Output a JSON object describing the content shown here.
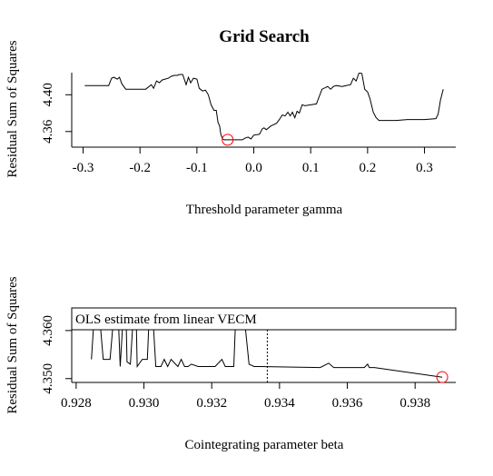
{
  "chart_data": [
    {
      "type": "line",
      "title": "Grid Search",
      "xlabel": "Threshold parameter gamma",
      "ylabel": "Residual Sum of Squares",
      "xlim": [
        -0.32,
        0.355
      ],
      "ylim": [
        4.343,
        4.424
      ],
      "xticks": [
        -0.3,
        -0.2,
        -0.1,
        0.0,
        0.1,
        0.2,
        0.3
      ],
      "xtick_labels": [
        "-0.3",
        "-0.2",
        "-0.1",
        "0.0",
        "0.1",
        "0.2",
        "0.3"
      ],
      "yticks": [
        4.36,
        4.4
      ],
      "ytick_labels": [
        "4.36",
        "4.40"
      ],
      "series": [
        {
          "color": "#000000",
          "x": [
            -0.297,
            -0.255,
            -0.25,
            -0.246,
            -0.24,
            -0.236,
            -0.232,
            -0.225,
            -0.19,
            -0.18,
            -0.176,
            -0.171,
            -0.166,
            -0.161,
            -0.156,
            -0.15,
            -0.145,
            -0.14,
            -0.135,
            -0.13,
            -0.125,
            -0.119,
            -0.115,
            -0.111,
            -0.106,
            -0.1,
            -0.096,
            -0.09,
            -0.085,
            -0.08,
            -0.075,
            -0.07,
            -0.066,
            -0.063,
            -0.06,
            -0.058,
            -0.055,
            -0.052,
            -0.049,
            -0.046,
            -0.02,
            -0.015,
            -0.01,
            -0.005,
            0.0,
            0.01,
            0.015,
            0.018,
            0.022,
            0.03,
            0.04,
            0.045,
            0.05,
            0.055,
            0.06,
            0.064,
            0.068,
            0.072,
            0.076,
            0.08,
            0.085,
            0.09,
            0.1,
            0.11,
            0.12,
            0.13,
            0.135,
            0.14,
            0.145,
            0.155,
            0.17,
            0.175,
            0.18,
            0.185,
            0.19,
            0.195,
            0.2,
            0.204,
            0.208,
            0.21,
            0.215,
            0.22,
            0.23,
            0.25,
            0.27,
            0.3,
            0.32,
            0.324,
            0.328,
            0.333
          ],
          "y": [
            4.41,
            4.41,
            4.418,
            4.419,
            4.417,
            4.419,
            4.412,
            4.406,
            4.406,
            4.411,
            4.407,
            4.415,
            4.413,
            4.416,
            4.417,
            4.418,
            4.42,
            4.421,
            4.421,
            4.422,
            4.422,
            4.411,
            4.419,
            4.413,
            4.418,
            4.417,
            4.407,
            4.404,
            4.405,
            4.4,
            4.389,
            4.383,
            4.383,
            4.37,
            4.366,
            4.357,
            4.352,
            4.351,
            4.351,
            4.351,
            4.351,
            4.353,
            4.354,
            4.352,
            4.356,
            4.357,
            4.363,
            4.364,
            4.362,
            4.366,
            4.369,
            4.373,
            4.378,
            4.377,
            4.381,
            4.377,
            4.381,
            4.375,
            4.382,
            4.38,
            4.389,
            4.388,
            4.389,
            4.39,
            4.406,
            4.409,
            4.406,
            4.409,
            4.41,
            4.409,
            4.411,
            4.418,
            4.415,
            4.424,
            4.423,
            4.406,
            4.403,
            4.396,
            4.386,
            4.381,
            4.375,
            4.372,
            4.372,
            4.372,
            4.373,
            4.373,
            4.374,
            4.379,
            4.394,
            4.406
          ]
        }
      ],
      "markers": [
        {
          "x": -0.046,
          "y": 4.351,
          "color": "#ff0000",
          "shape": "circle"
        }
      ]
    },
    {
      "type": "line",
      "xlabel": "Cointegrating parameter beta",
      "ylabel": "Residual Sum of Squares",
      "xlim": [
        0.92787,
        0.9392
      ],
      "ylim": [
        4.3492,
        4.3647
      ],
      "xticks": [
        0.928,
        0.93,
        0.932,
        0.934,
        0.936,
        0.938
      ],
      "xtick_labels": [
        "0.928",
        "0.930",
        "0.932",
        "0.934",
        "0.936",
        "0.938"
      ],
      "yticks": [
        4.35,
        4.36
      ],
      "ytick_labels": [
        "4.350",
        "4.360"
      ],
      "legend": {
        "text": "OLS estimate from linear VECM",
        "position": "top"
      },
      "vline": {
        "x": 0.93364,
        "style": "dotted",
        "color": "#000000"
      },
      "series": [
        {
          "color": "#000000",
          "x": [
            0.92845,
            0.9286,
            0.9288,
            0.929,
            0.9292,
            0.9293,
            0.92945,
            0.9295,
            0.9296,
            0.92975,
            0.9298,
            0.92995,
            0.9301,
            0.9302,
            0.93035,
            0.9305,
            0.9306,
            0.9307,
            0.9308,
            0.931,
            0.9311,
            0.9312,
            0.9313,
            0.9314,
            0.9316,
            0.9321,
            0.9323,
            0.9324,
            0.9325,
            0.93265,
            0.93275,
            0.93285,
            0.9331,
            0.93325,
            0.9334,
            0.9352,
            0.93545,
            0.9356,
            0.93565,
            0.9358,
            0.9364,
            0.9365,
            0.9366,
            0.93665,
            0.9368,
            0.9388
          ],
          "y": [
            4.354,
            4.3705,
            4.354,
            4.354,
            4.3705,
            4.3525,
            4.3705,
            4.3535,
            4.353,
            4.3705,
            4.3525,
            4.354,
            4.354,
            4.3705,
            4.3525,
            4.3525,
            4.354,
            4.3525,
            4.354,
            4.3525,
            4.354,
            4.3525,
            4.3525,
            4.353,
            4.3525,
            4.3525,
            4.354,
            4.3525,
            4.3525,
            4.3525,
            4.3705,
            4.3705,
            4.353,
            4.3525,
            4.3525,
            4.3523,
            4.3532,
            4.3523,
            4.3523,
            4.3523,
            4.3523,
            4.3523,
            4.353,
            4.3523,
            4.3523,
            4.3503
          ]
        }
      ],
      "markers": [
        {
          "x": 0.9388,
          "y": 4.3503,
          "color": "#ff0000",
          "shape": "circle"
        }
      ]
    }
  ]
}
